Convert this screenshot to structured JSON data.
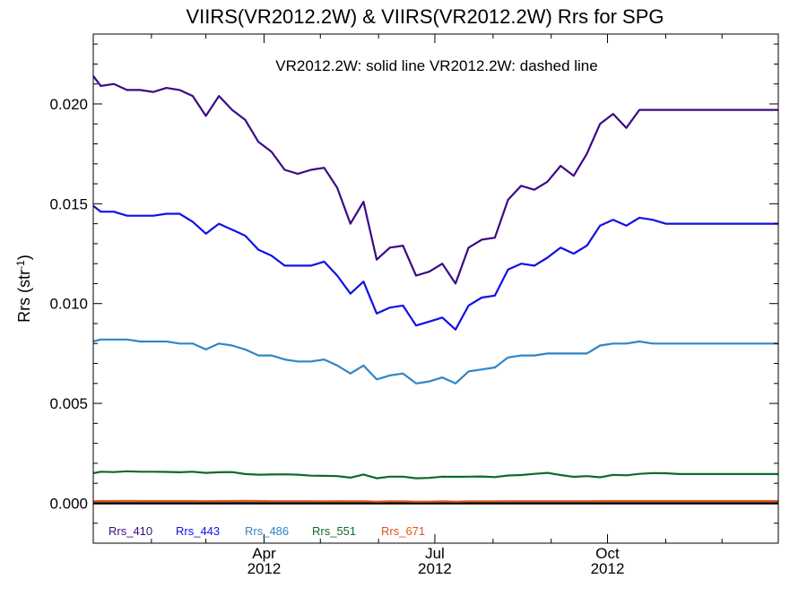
{
  "chart_data": {
    "type": "line",
    "title": "VIIRS(VR2012.2W) & VIIRS(VR2012.2W)  Rrs for SPG",
    "annotation": "VR2012.2W: solid line   VR2012.2W: dashed line",
    "ylabel": "Rrs (str",
    "ylabel_sup": "-1",
    "ylabel_end": ")",
    "xlim": [
      "2012-01-01",
      "2012-12-31"
    ],
    "ylim": [
      -0.002,
      0.0235
    ],
    "yticks": [
      0.0,
      0.005,
      0.01,
      0.015,
      0.02
    ],
    "ytick_labels": [
      "0.000",
      "0.005",
      "0.010",
      "0.015",
      "0.020"
    ],
    "xticks": [
      {
        "date": "2012-04-01",
        "month": "Apr",
        "year": "2012"
      },
      {
        "date": "2012-07-01",
        "month": "Jul",
        "year": "2012"
      },
      {
        "date": "2012-10-01",
        "month": "Oct",
        "year": "2012"
      }
    ],
    "x": [
      "2012-01-01",
      "2012-01-05",
      "2012-01-12",
      "2012-01-19",
      "2012-01-26",
      "2012-02-02",
      "2012-02-09",
      "2012-02-16",
      "2012-02-23",
      "2012-03-01",
      "2012-03-08",
      "2012-03-15",
      "2012-03-22",
      "2012-03-29",
      "2012-04-05",
      "2012-04-12",
      "2012-04-19",
      "2012-04-26",
      "2012-05-03",
      "2012-05-10",
      "2012-05-17",
      "2012-05-24",
      "2012-05-31",
      "2012-06-07",
      "2012-06-14",
      "2012-06-21",
      "2012-06-28",
      "2012-07-05",
      "2012-07-12",
      "2012-07-19",
      "2012-07-26",
      "2012-08-02",
      "2012-08-09",
      "2012-08-16",
      "2012-08-23",
      "2012-08-30",
      "2012-09-06",
      "2012-09-13",
      "2012-09-20",
      "2012-09-27",
      "2012-10-04",
      "2012-10-11",
      "2012-10-18",
      "2012-10-25",
      "2012-11-01",
      "2012-11-08",
      "2012-11-15",
      "2012-11-22",
      "2012-11-29",
      "2012-12-06",
      "2012-12-13",
      "2012-12-20",
      "2012-12-31"
    ],
    "series": [
      {
        "name": "Rrs_410",
        "color": "#3c0a86",
        "values": [
          0.0214,
          0.0209,
          0.021,
          0.0207,
          0.0207,
          0.0206,
          0.0208,
          0.0207,
          0.0204,
          0.0194,
          0.0204,
          0.0197,
          0.0192,
          0.0181,
          0.0176,
          0.0167,
          0.0165,
          0.0167,
          0.0168,
          0.0158,
          0.014,
          0.0151,
          0.0122,
          0.0128,
          0.0129,
          0.0114,
          0.0116,
          0.012,
          0.011,
          0.0128,
          0.0132,
          0.0133,
          0.0152,
          0.0159,
          0.0157,
          0.0161,
          0.0169,
          0.0164,
          0.0175,
          0.019,
          0.0195,
          0.0188,
          0.0197,
          0.0197,
          0.0197,
          0.0197,
          0.0197,
          0.0197,
          0.0197,
          0.0197,
          0.0197,
          0.0197,
          0.0197
        ]
      },
      {
        "name": "Rrs_443",
        "color": "#1010e8",
        "values": [
          0.0149,
          0.0146,
          0.0146,
          0.0144,
          0.0144,
          0.0144,
          0.0145,
          0.0145,
          0.0141,
          0.0135,
          0.014,
          0.0137,
          0.0134,
          0.0127,
          0.0124,
          0.0119,
          0.0119,
          0.0119,
          0.0121,
          0.0114,
          0.0105,
          0.0111,
          0.0095,
          0.0098,
          0.0099,
          0.0089,
          0.0091,
          0.0093,
          0.0087,
          0.0099,
          0.0103,
          0.0104,
          0.0117,
          0.012,
          0.0119,
          0.0123,
          0.0128,
          0.0125,
          0.0129,
          0.0139,
          0.0142,
          0.0139,
          0.0143,
          0.0142,
          0.014,
          0.014,
          0.014,
          0.014,
          0.014,
          0.014,
          0.014,
          0.014,
          0.014
        ]
      },
      {
        "name": "Rrs_486",
        "color": "#2f86c8",
        "values": [
          0.0081,
          0.0082,
          0.0082,
          0.0082,
          0.0081,
          0.0081,
          0.0081,
          0.008,
          0.008,
          0.0077,
          0.008,
          0.0079,
          0.0077,
          0.0074,
          0.0074,
          0.0072,
          0.0071,
          0.0071,
          0.0072,
          0.0069,
          0.0065,
          0.0069,
          0.0062,
          0.0064,
          0.0065,
          0.006,
          0.0061,
          0.0063,
          0.006,
          0.0066,
          0.0067,
          0.0068,
          0.0073,
          0.0074,
          0.0074,
          0.0075,
          0.0075,
          0.0075,
          0.0075,
          0.0079,
          0.008,
          0.008,
          0.0081,
          0.008,
          0.008,
          0.008,
          0.008,
          0.008,
          0.008,
          0.008,
          0.008,
          0.008,
          0.008
        ]
      },
      {
        "name": "Rrs_551",
        "color": "#0c6b2a",
        "values": [
          0.0015,
          0.00158,
          0.00156,
          0.0016,
          0.00158,
          0.00158,
          0.00157,
          0.00155,
          0.00158,
          0.00152,
          0.00155,
          0.00156,
          0.00146,
          0.00143,
          0.00144,
          0.00145,
          0.00143,
          0.00138,
          0.00137,
          0.00136,
          0.00128,
          0.00144,
          0.00125,
          0.00133,
          0.00133,
          0.00125,
          0.00127,
          0.00133,
          0.00132,
          0.00133,
          0.00134,
          0.00131,
          0.00139,
          0.00141,
          0.00147,
          0.00152,
          0.00141,
          0.00132,
          0.00136,
          0.0013,
          0.00142,
          0.0014,
          0.00147,
          0.00151,
          0.0015,
          0.00146,
          0.00146,
          0.00146,
          0.00146,
          0.00146,
          0.00146,
          0.00146,
          0.00146
        ]
      },
      {
        "name": "Rrs_671",
        "color": "#e0561a",
        "values": [
          0.0001,
          0.00011,
          0.00011,
          0.00012,
          0.00011,
          0.00011,
          0.00011,
          0.00011,
          0.00011,
          0.0001,
          0.00011,
          0.00011,
          0.00012,
          0.00011,
          0.0001,
          0.0001,
          0.0001,
          0.0001,
          9e-05,
          0.0001,
          9e-05,
          0.0001,
          8e-05,
          9e-05,
          9e-05,
          8e-05,
          8e-05,
          9e-05,
          8e-05,
          9e-05,
          9e-05,
          9e-05,
          0.0001,
          0.0001,
          0.0001,
          0.0001,
          0.0001,
          0.0001,
          0.0001,
          0.00011,
          0.00011,
          0.00011,
          0.00011,
          0.00011,
          0.00011,
          0.00011,
          0.00011,
          0.00011,
          0.00011,
          0.00011,
          0.00011,
          0.00011,
          0.00011
        ]
      }
    ],
    "grid": false,
    "legend_position": "bottom-left"
  }
}
